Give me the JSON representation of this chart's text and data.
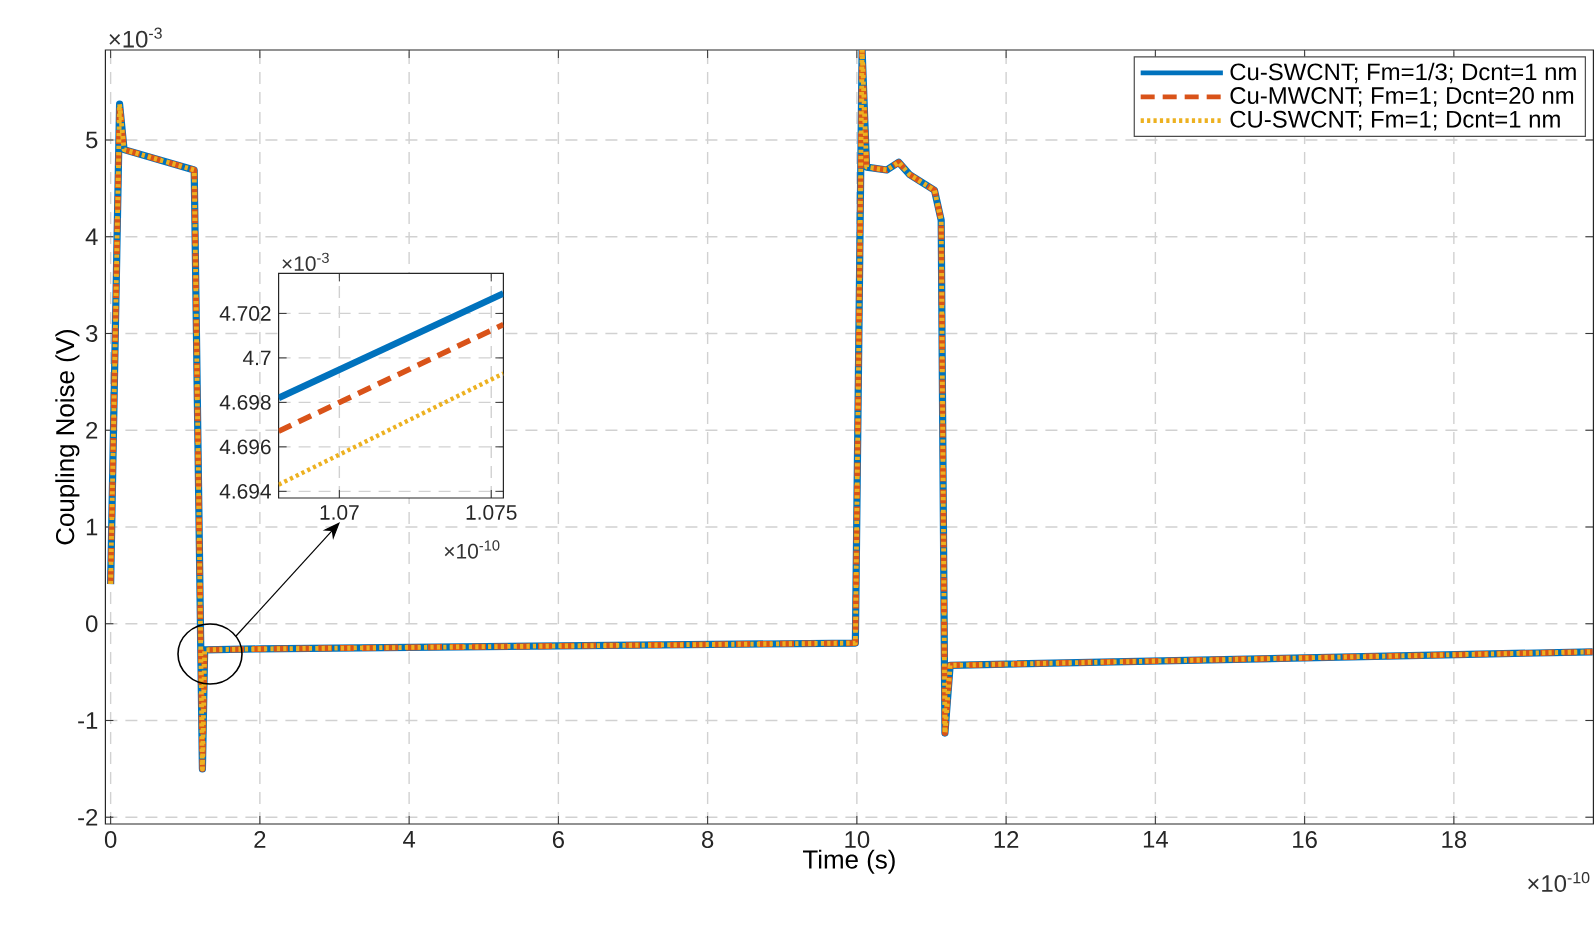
{
  "chart_data": [
    {
      "type": "line",
      "xlabel": "Time (s)",
      "ylabel": "Coupling Noise (V)",
      "x": [
        0,
        0.12,
        0.18,
        1.12,
        1.23,
        1.26,
        2,
        9.98,
        10.07,
        10.13,
        10.4,
        10.56,
        10.71,
        11.04,
        11.13,
        11.18,
        11.25,
        19.86
      ],
      "series": [
        {
          "name": "Cu-SWCNT; Fm=1/3; Dcnt=1 nm",
          "color": "#0072bd",
          "line_style": "solid",
          "values": [
            0.41,
            5.37,
            4.9,
            4.69,
            -1.5,
            -0.27,
            -0.26,
            -0.2,
            5.93,
            4.72,
            4.69,
            4.77,
            4.64,
            4.48,
            4.17,
            -1.13,
            -0.43,
            -0.29
          ]
        },
        {
          "name": "Cu-MWCNT; Fm=1; Dcnt=20 nm",
          "color": "#d95319",
          "line_style": "dashed",
          "values": [
            0.41,
            5.37,
            4.9,
            4.69,
            -1.5,
            -0.27,
            -0.26,
            -0.2,
            5.93,
            4.72,
            4.69,
            4.77,
            4.64,
            4.48,
            4.17,
            -1.13,
            -0.43,
            -0.29
          ]
        },
        {
          "name": "CU-SWCNT; Fm=1; Dcnt=1 nm",
          "color": "#edb120",
          "line_style": "dotted",
          "values": [
            0.41,
            5.37,
            4.9,
            4.69,
            -1.5,
            -0.27,
            -0.26,
            -0.2,
            5.93,
            4.72,
            4.69,
            4.77,
            4.64,
            4.48,
            4.17,
            -1.13,
            -0.43,
            -0.29
          ]
        }
      ],
      "xlim": [
        -0.07,
        19.87
      ],
      "ylim": [
        -2.07,
        5.93
      ],
      "xticks": [
        0,
        2,
        4,
        6,
        8,
        10,
        12,
        14,
        16,
        18
      ],
      "yticks": [
        -2,
        -1,
        0,
        1,
        2,
        3,
        4,
        5
      ],
      "grid": true,
      "legend": "top right",
      "annotations": [
        "×10$^{-3}$",
        "×10$^{-10}$"
      ]
    },
    {
      "type": "line",
      "x": [
        1.068,
        1.0754
      ],
      "series": [
        {
          "color": "#0072bd",
          "line_style": "solid",
          "values": [
            4.6982,
            4.7029
          ]
        },
        {
          "color": "#d95319",
          "line_style": "dashed",
          "values": [
            4.6967,
            4.7015
          ]
        },
        {
          "color": "#edb120",
          "line_style": "dotted",
          "values": [
            4.6943,
            4.6993
          ]
        }
      ],
      "xlim": [
        1.068,
        1.0754
      ],
      "ylim": [
        4.6937,
        4.7038
      ],
      "xticks": [
        1.07,
        1.075
      ],
      "yticks": [
        4.694,
        4.696,
        4.698,
        4.7,
        4.702
      ],
      "grid": true,
      "annotations": [
        "×10$^{-3}$",
        "×10$^{-10}$"
      ]
    }
  ]
}
